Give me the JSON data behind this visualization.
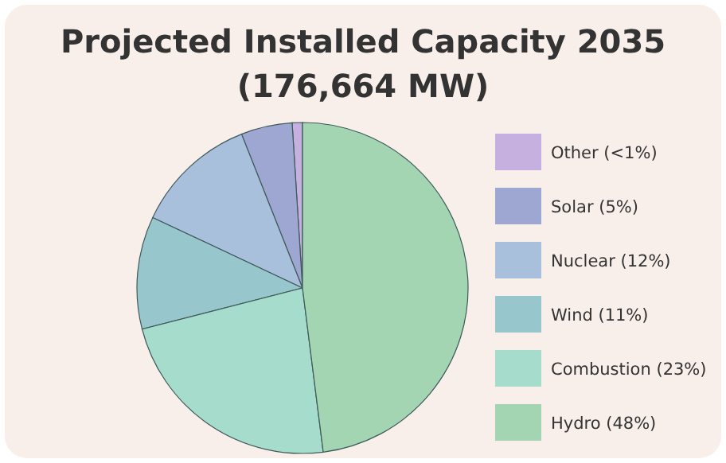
{
  "chart_data": {
    "type": "pie",
    "title": "Projected Installed Capacity 2035",
    "subtitle": "(176,664 MW)",
    "categories": [
      "Other (<1%)",
      "Solar (5%)",
      "Nuclear (12%)",
      "Wind (11%)",
      "Combustion (23%)",
      "Hydro (48%)"
    ],
    "values": [
      1,
      5,
      12,
      11,
      23,
      48
    ],
    "colors": [
      "#c5b0df",
      "#9ea7d2",
      "#a8c0dc",
      "#97c6cc",
      "#a6dccb",
      "#a3d5b3"
    ],
    "legend": "right"
  }
}
